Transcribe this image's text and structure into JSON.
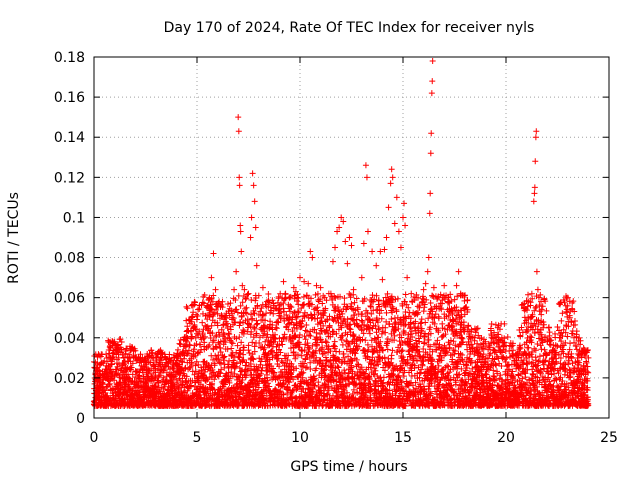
{
  "chart_data": {
    "type": "scatter",
    "title": "Day 170 of 2024, Rate Of TEC Index for receiver nyls",
    "xlabel": "GPS time / hours",
    "ylabel": "ROTI / TECUs",
    "xlim": [
      0,
      25
    ],
    "ylim": [
      0,
      0.18
    ],
    "xticks": [
      0,
      5,
      10,
      15,
      20,
      25
    ],
    "xtick_labels": [
      "0",
      "5",
      "10",
      "15",
      "20",
      "25"
    ],
    "yticks": [
      0,
      0.02,
      0.04,
      0.06,
      0.08,
      0.1,
      0.12,
      0.14,
      0.16,
      0.18
    ],
    "ytick_labels": [
      "0",
      "0.02",
      "0.04",
      "0.06",
      "0.08",
      "0.1",
      "0.12",
      "0.14",
      "0.16",
      "0.18"
    ],
    "grid": true,
    "marker": "plus",
    "series": [
      {
        "name": "ROTI",
        "color": "#ff0000",
        "points": [
          [
            0.0,
            0.028
          ],
          [
            0.2,
            0.024
          ],
          [
            0.5,
            0.022
          ],
          [
            0.8,
            0.03
          ],
          [
            1.0,
            0.038
          ],
          [
            1.2,
            0.03
          ],
          [
            1.5,
            0.028
          ],
          [
            1.8,
            0.034
          ],
          [
            2.0,
            0.03
          ],
          [
            2.3,
            0.026
          ],
          [
            2.5,
            0.029
          ],
          [
            2.8,
            0.031
          ],
          [
            3.0,
            0.032
          ],
          [
            3.3,
            0.03
          ],
          [
            3.5,
            0.026
          ],
          [
            3.8,
            0.025
          ],
          [
            4.0,
            0.027
          ],
          [
            4.3,
            0.032
          ],
          [
            4.5,
            0.038
          ],
          [
            4.7,
            0.043
          ],
          [
            4.8,
            0.056
          ],
          [
            5.0,
            0.042
          ],
          [
            5.2,
            0.034
          ],
          [
            5.4,
            0.046
          ],
          [
            5.5,
            0.056
          ],
          [
            5.6,
            0.06
          ],
          [
            5.7,
            0.07
          ],
          [
            5.8,
            0.082
          ],
          [
            5.9,
            0.064
          ],
          [
            6.0,
            0.052
          ],
          [
            6.2,
            0.044
          ],
          [
            6.4,
            0.048
          ],
          [
            6.5,
            0.04
          ],
          [
            6.7,
            0.052
          ],
          [
            6.8,
            0.064
          ],
          [
            6.9,
            0.073
          ],
          [
            7.0,
            0.15
          ],
          [
            7.03,
            0.143
          ],
          [
            7.05,
            0.12
          ],
          [
            7.07,
            0.116
          ],
          [
            7.1,
            0.096
          ],
          [
            7.12,
            0.093
          ],
          [
            7.15,
            0.083
          ],
          [
            7.2,
            0.066
          ],
          [
            7.3,
            0.064
          ],
          [
            7.4,
            0.055
          ],
          [
            7.5,
            0.062
          ],
          [
            7.6,
            0.09
          ],
          [
            7.65,
            0.1
          ],
          [
            7.7,
            0.122
          ],
          [
            7.75,
            0.116
          ],
          [
            7.8,
            0.108
          ],
          [
            7.85,
            0.095
          ],
          [
            7.9,
            0.076
          ],
          [
            8.0,
            0.061
          ],
          [
            8.2,
            0.065
          ],
          [
            8.4,
            0.058
          ],
          [
            8.5,
            0.045
          ],
          [
            8.7,
            0.052
          ],
          [
            8.9,
            0.048
          ],
          [
            9.0,
            0.056
          ],
          [
            9.2,
            0.068
          ],
          [
            9.3,
            0.062
          ],
          [
            9.5,
            0.05
          ],
          [
            9.7,
            0.065
          ],
          [
            9.8,
            0.063
          ],
          [
            10.0,
            0.07
          ],
          [
            10.2,
            0.068
          ],
          [
            10.4,
            0.067
          ],
          [
            10.5,
            0.083
          ],
          [
            10.6,
            0.08
          ],
          [
            10.8,
            0.066
          ],
          [
            11.0,
            0.065
          ],
          [
            11.2,
            0.06
          ],
          [
            11.4,
            0.062
          ],
          [
            11.5,
            0.062
          ],
          [
            11.6,
            0.078
          ],
          [
            11.7,
            0.085
          ],
          [
            11.8,
            0.093
          ],
          [
            11.9,
            0.095
          ],
          [
            12.0,
            0.1
          ],
          [
            12.1,
            0.098
          ],
          [
            12.2,
            0.088
          ],
          [
            12.3,
            0.077
          ],
          [
            12.4,
            0.09
          ],
          [
            12.5,
            0.086
          ],
          [
            12.6,
            0.064
          ],
          [
            12.8,
            0.055
          ],
          [
            13.0,
            0.07
          ],
          [
            13.1,
            0.087
          ],
          [
            13.2,
            0.126
          ],
          [
            13.25,
            0.12
          ],
          [
            13.3,
            0.093
          ],
          [
            13.5,
            0.083
          ],
          [
            13.7,
            0.076
          ],
          [
            13.9,
            0.083
          ],
          [
            14.0,
            0.069
          ],
          [
            14.1,
            0.084
          ],
          [
            14.2,
            0.09
          ],
          [
            14.3,
            0.105
          ],
          [
            14.4,
            0.117
          ],
          [
            14.45,
            0.124
          ],
          [
            14.5,
            0.12
          ],
          [
            14.6,
            0.097
          ],
          [
            14.7,
            0.11
          ],
          [
            14.8,
            0.093
          ],
          [
            14.9,
            0.085
          ],
          [
            15.0,
            0.1
          ],
          [
            15.05,
            0.107
          ],
          [
            15.1,
            0.096
          ],
          [
            15.2,
            0.07
          ],
          [
            15.4,
            0.062
          ],
          [
            15.6,
            0.052
          ],
          [
            15.8,
            0.055
          ],
          [
            16.0,
            0.064
          ],
          [
            16.1,
            0.067
          ],
          [
            16.2,
            0.073
          ],
          [
            16.25,
            0.08
          ],
          [
            16.3,
            0.102
          ],
          [
            16.32,
            0.112
          ],
          [
            16.35,
            0.132
          ],
          [
            16.37,
            0.142
          ],
          [
            16.4,
            0.162
          ],
          [
            16.42,
            0.168
          ],
          [
            16.44,
            0.178
          ],
          [
            16.5,
            0.065
          ],
          [
            16.7,
            0.06
          ],
          [
            17.0,
            0.066
          ],
          [
            17.2,
            0.06
          ],
          [
            17.5,
            0.055
          ],
          [
            17.6,
            0.066
          ],
          [
            17.7,
            0.073
          ],
          [
            17.8,
            0.062
          ],
          [
            18.0,
            0.045
          ],
          [
            18.3,
            0.043
          ],
          [
            18.6,
            0.037
          ],
          [
            19.0,
            0.038
          ],
          [
            19.3,
            0.04
          ],
          [
            19.6,
            0.045
          ],
          [
            19.8,
            0.04
          ],
          [
            20.0,
            0.036
          ],
          [
            20.3,
            0.031
          ],
          [
            20.6,
            0.03
          ],
          [
            20.9,
            0.033
          ],
          [
            21.0,
            0.044
          ],
          [
            21.1,
            0.058
          ],
          [
            21.2,
            0.05
          ],
          [
            21.3,
            0.046
          ],
          [
            21.35,
            0.108
          ],
          [
            21.38,
            0.112
          ],
          [
            21.4,
            0.115
          ],
          [
            21.42,
            0.128
          ],
          [
            21.45,
            0.14
          ],
          [
            21.47,
            0.143
          ],
          [
            21.5,
            0.073
          ],
          [
            21.55,
            0.064
          ],
          [
            21.6,
            0.06
          ],
          [
            21.7,
            0.058
          ],
          [
            21.8,
            0.045
          ],
          [
            22.0,
            0.038
          ],
          [
            22.3,
            0.034
          ],
          [
            22.6,
            0.04
          ],
          [
            22.8,
            0.044
          ],
          [
            22.9,
            0.056
          ],
          [
            23.0,
            0.06
          ],
          [
            23.1,
            0.05
          ],
          [
            23.3,
            0.04
          ],
          [
            23.5,
            0.032
          ],
          [
            23.8,
            0.034
          ],
          [
            24.0,
            0.03
          ]
        ]
      }
    ]
  }
}
